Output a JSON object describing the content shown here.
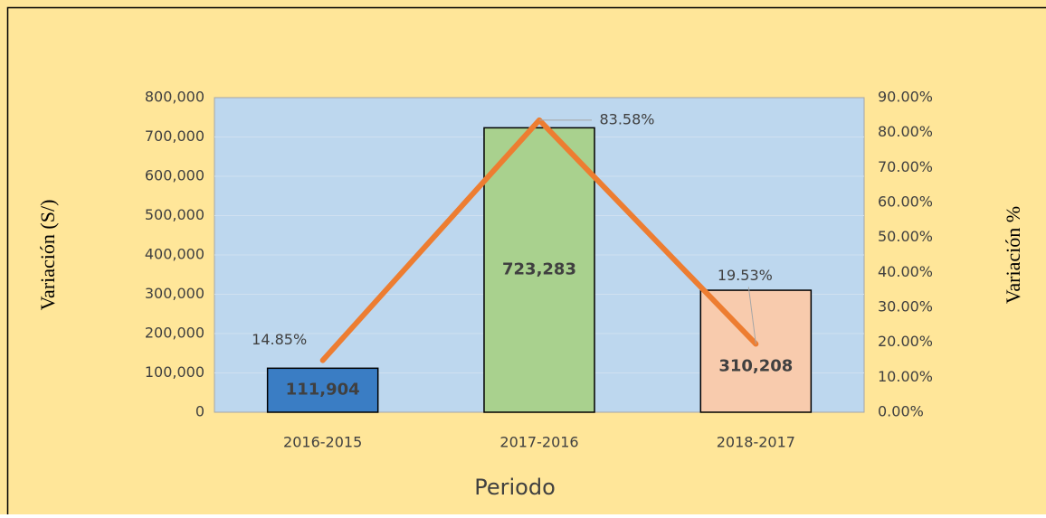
{
  "chart_data": {
    "type": "bar",
    "categories": [
      "2016-2015",
      "2017-2016",
      "2018-2017"
    ],
    "series": [
      {
        "type": "bar",
        "colors": [
          "#3a7dc4",
          "#a9d18e",
          "#f8cbad"
        ],
        "values": [
          111904,
          723283,
          310208
        ],
        "value_labels": [
          "111,904",
          "723,283",
          "310,208"
        ]
      },
      {
        "type": "line",
        "axis": "y2",
        "color": "#ed7d31",
        "values": [
          14.85,
          83.58,
          19.53
        ],
        "value_labels": [
          "14.85%",
          "83.58%",
          "19.53%"
        ]
      }
    ],
    "ylim": [
      0,
      800000
    ],
    "yticks": [
      0,
      {
        "value": 100000,
        "label": "100,000"
      },
      {
        "value": 200000,
        "label": "200,000"
      },
      {
        "value": 300000,
        "label": "300,000"
      },
      {
        "value": 400000,
        "label": "400,000"
      },
      {
        "value": 500000,
        "label": "500,000"
      },
      {
        "value": 600000,
        "label": "600,000"
      },
      {
        "value": 700000,
        "label": "700,000"
      },
      {
        "value": 800000,
        "label": "800,000"
      }
    ],
    "y2lim": [
      0,
      90
    ],
    "y2ticks": [
      {
        "value": 0,
        "label": "0.00%"
      },
      {
        "value": 10,
        "label": "10.00%"
      },
      {
        "value": 20,
        "label": "20.00%"
      },
      {
        "value": 30,
        "label": "30.00%"
      },
      {
        "value": 40,
        "label": "40.00%"
      },
      {
        "value": 50,
        "label": "50.00%"
      },
      {
        "value": 60,
        "label": "60.00%"
      },
      {
        "value": 70,
        "label": "70.00%"
      },
      {
        "value": 80,
        "label": "80.00%"
      },
      {
        "value": 90,
        "label": "90.00%"
      }
    ],
    "ylabel": "Variación (S/)",
    "y2label": "Variación %",
    "xlabel": "Periodo",
    "grid": true
  }
}
